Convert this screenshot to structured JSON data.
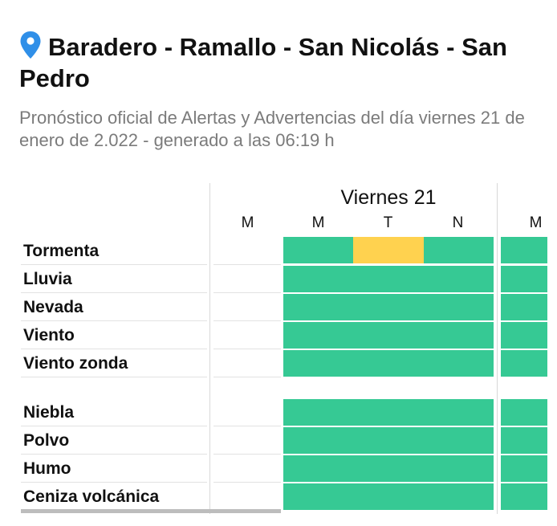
{
  "header": {
    "title": "Baradero - Ramallo - San Nicolás - San Pedro",
    "subtitle": "Pronóstico oficial de Alertas y Advertencias del día viernes 21 de enero de 2.022 - generado a las 06:19 h"
  },
  "table": {
    "day_label": "Viernes 21",
    "columns": [
      "M",
      "M",
      "T",
      "N",
      "M"
    ],
    "rows_group1": [
      "Tormenta",
      "Lluvia",
      "Nevada",
      "Viento",
      "Viento zonda"
    ],
    "rows_group2": [
      "Niebla",
      "Polvo",
      "Humo",
      "Ceniza volcánica"
    ],
    "colors": {
      "no_alert": "#36c994",
      "advertencia": "#ffd24f"
    }
  }
}
